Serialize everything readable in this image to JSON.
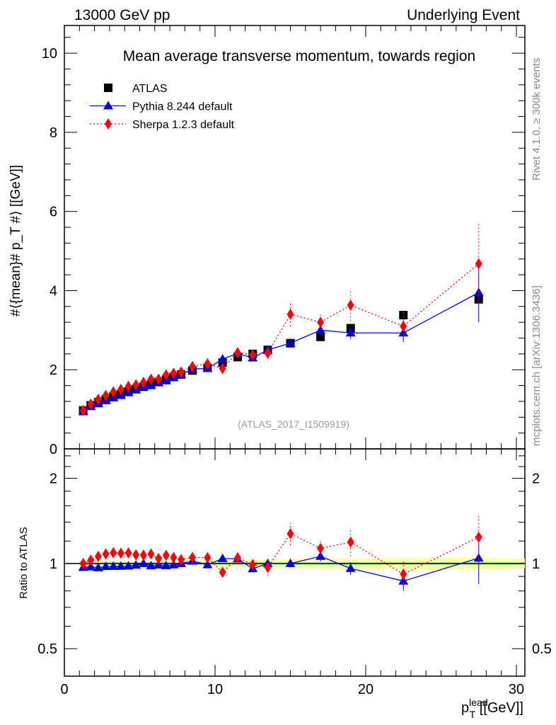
{
  "header": {
    "left": "13000 GeV pp",
    "right": "Underlying Event"
  },
  "side_text": {
    "top": "Rivet 4.1.0, ≥ 300k events",
    "bottom": "mcplots.cern.ch [arXiv:1306.3436]"
  },
  "chart_data": {
    "type": "scatter",
    "title": "Mean average transverse momentum, towards region",
    "analysis_label": "(ATLAS_2017_I1509919)",
    "ylabel": "#⟨{mean}# p_T #⟩ [[GeV]]",
    "ratio_ylabel": "Ratio to ATLAS",
    "xlabel": "p_T^lead [[GeV]]",
    "xlim": [
      0,
      30
    ],
    "ylim": [
      0,
      10.7
    ],
    "ratio_ylim": [
      0.4,
      2.54
    ],
    "xticks": [
      "0",
      "10",
      "20",
      "30"
    ],
    "yticks": [
      "0",
      "2",
      "4",
      "6",
      "8",
      "10"
    ],
    "ratio_yticks": [
      "0.5",
      "1",
      "2"
    ],
    "x": [
      1.25,
      1.75,
      2.25,
      2.75,
      3.25,
      3.75,
      4.25,
      4.75,
      5.25,
      5.75,
      6.25,
      6.75,
      7.25,
      7.75,
      8.5,
      9.5,
      10.5,
      11.5,
      12.5,
      13.5,
      15,
      17,
      19,
      22.5,
      27.5
    ],
    "series": [
      {
        "name": "ATLAS",
        "color": "#000000",
        "marker": "square",
        "values": [
          0.97,
          1.1,
          1.18,
          1.25,
          1.32,
          1.38,
          1.45,
          1.51,
          1.57,
          1.63,
          1.69,
          1.75,
          1.82,
          1.88,
          1.98,
          2.05,
          2.18,
          2.32,
          2.4,
          2.5,
          2.67,
          2.83,
          3.05,
          3.38,
          3.78
        ],
        "errors": [
          0.01,
          0.01,
          0.01,
          0.01,
          0.01,
          0.01,
          0.01,
          0.01,
          0.01,
          0.01,
          0.01,
          0.01,
          0.01,
          0.01,
          0.02,
          0.02,
          0.03,
          0.03,
          0.04,
          0.05,
          0.06,
          0.07,
          0.08,
          0.1,
          0.12
        ]
      },
      {
        "name": "Pythia 8.244 default",
        "color": "#0000dd",
        "marker": "triangle",
        "values": [
          0.94,
          1.07,
          1.14,
          1.22,
          1.29,
          1.35,
          1.42,
          1.49,
          1.57,
          1.6,
          1.67,
          1.72,
          1.8,
          1.88,
          2.02,
          2.03,
          2.27,
          2.41,
          2.3,
          2.5,
          2.67,
          3.0,
          2.93,
          2.93,
          3.95
        ],
        "errors": [
          0.01,
          0.01,
          0.01,
          0.01,
          0.01,
          0.01,
          0.01,
          0.01,
          0.01,
          0.01,
          0.01,
          0.01,
          0.01,
          0.01,
          0.02,
          0.03,
          0.06,
          0.06,
          0.05,
          0.08,
          0.08,
          0.12,
          0.15,
          0.2,
          0.75
        ]
      },
      {
        "name": "Sherpa 1.2.3 default",
        "color": "#ff0000",
        "marker": "diamond",
        "values": [
          0.97,
          1.13,
          1.25,
          1.35,
          1.44,
          1.5,
          1.58,
          1.62,
          1.68,
          1.76,
          1.76,
          1.87,
          1.91,
          1.94,
          2.08,
          2.15,
          2.03,
          2.43,
          2.38,
          2.42,
          3.4,
          3.2,
          3.63,
          3.1,
          4.68
        ],
        "errors": [
          0.01,
          0.02,
          0.02,
          0.02,
          0.02,
          0.02,
          0.02,
          0.03,
          0.03,
          0.03,
          0.03,
          0.03,
          0.04,
          0.04,
          0.05,
          0.06,
          0.06,
          0.12,
          0.1,
          0.15,
          0.3,
          0.2,
          0.4,
          0.4,
          1.0
        ]
      }
    ]
  }
}
